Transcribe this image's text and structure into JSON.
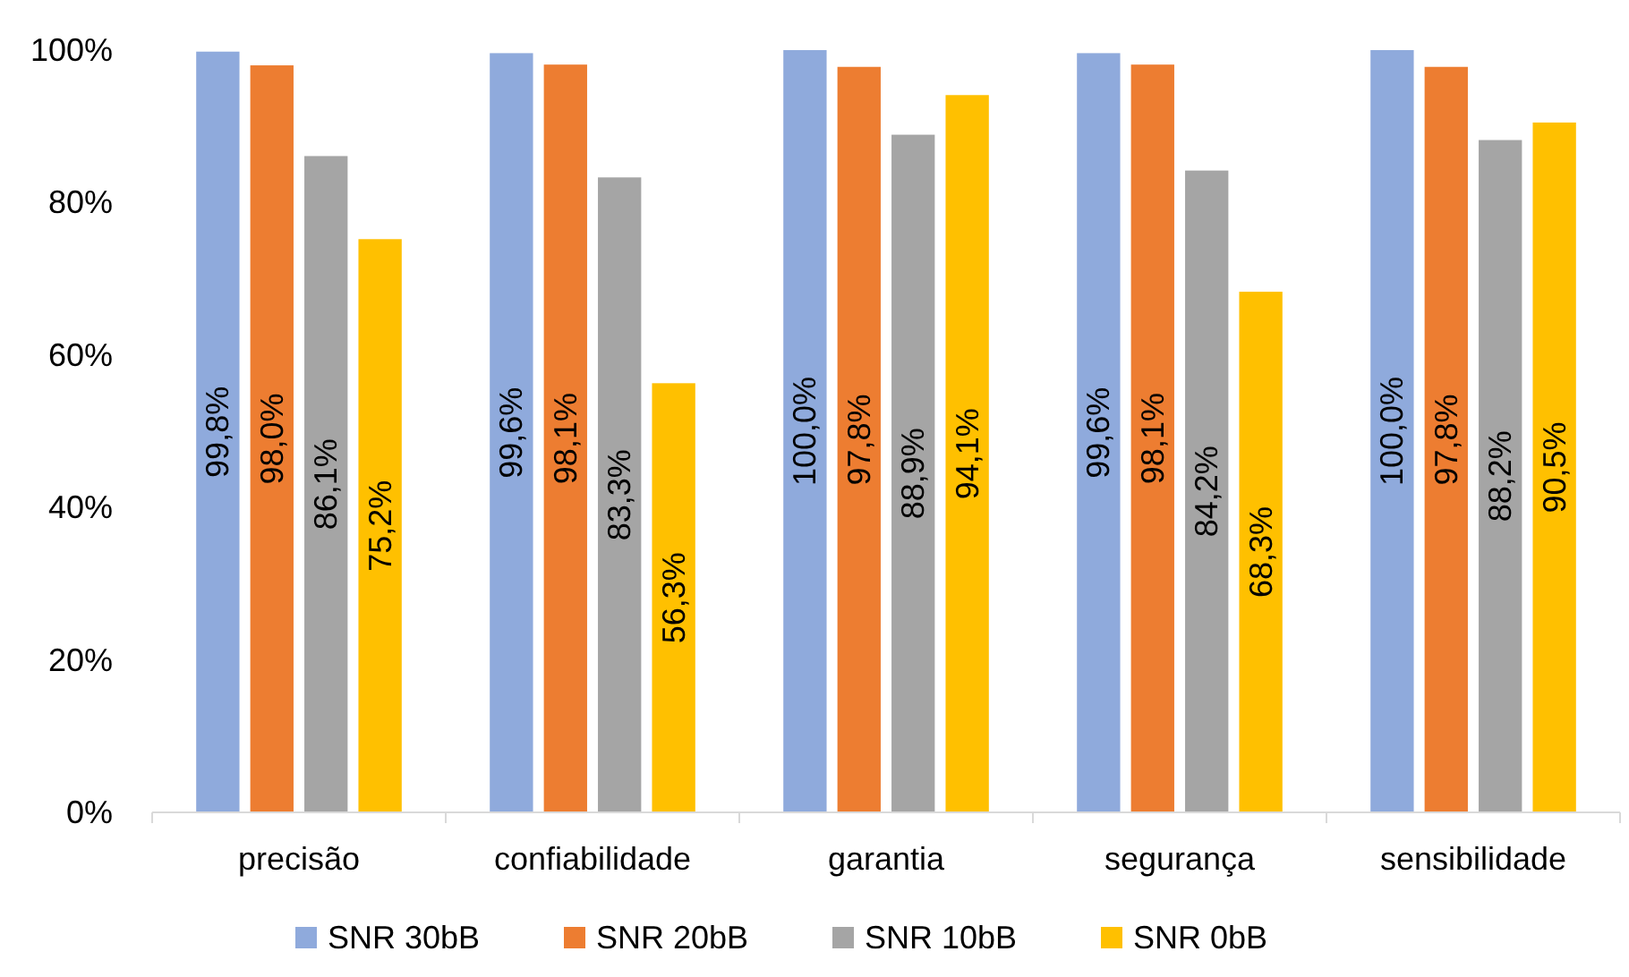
{
  "chart_data": {
    "type": "bar",
    "categories": [
      "precisão",
      "confiabilidade",
      "garantia",
      "segurança",
      "sensibilidade"
    ],
    "series": [
      {
        "name": "SNR 30bB",
        "color": "#8faadc",
        "values": [
          99.8,
          99.6,
          100.0,
          99.6,
          100.0
        ],
        "value_labels": [
          "99,8%",
          "99,6%",
          "100,0%",
          "99,6%",
          "100,0%"
        ]
      },
      {
        "name": "SNR 20bB",
        "color": "#ed7d31",
        "values": [
          98.0,
          98.1,
          97.8,
          98.1,
          97.8
        ],
        "value_labels": [
          "98,0%",
          "98,1%",
          "97,8%",
          "98,1%",
          "97,8%"
        ]
      },
      {
        "name": "SNR 10bB",
        "color": "#a5a5a5",
        "values": [
          86.1,
          83.3,
          88.9,
          84.2,
          88.2
        ],
        "value_labels": [
          "86,1%",
          "83,3%",
          "88,9%",
          "84,2%",
          "88,2%"
        ]
      },
      {
        "name": "SNR 0bB",
        "color": "#ffc000",
        "values": [
          75.2,
          56.3,
          94.1,
          68.3,
          90.5
        ],
        "value_labels": [
          "75,2%",
          "56,3%",
          "94,1%",
          "68,3%",
          "90,5%"
        ]
      }
    ],
    "ylim": [
      0,
      100
    ],
    "yticks": [
      {
        "value": 0,
        "label": "0%"
      },
      {
        "value": 20,
        "label": "20%"
      },
      {
        "value": 40,
        "label": "40%"
      },
      {
        "value": 60,
        "label": "60%"
      },
      {
        "value": 80,
        "label": "80%"
      },
      {
        "value": 100,
        "label": "100%"
      }
    ],
    "grid": false,
    "legend": "bottom"
  }
}
